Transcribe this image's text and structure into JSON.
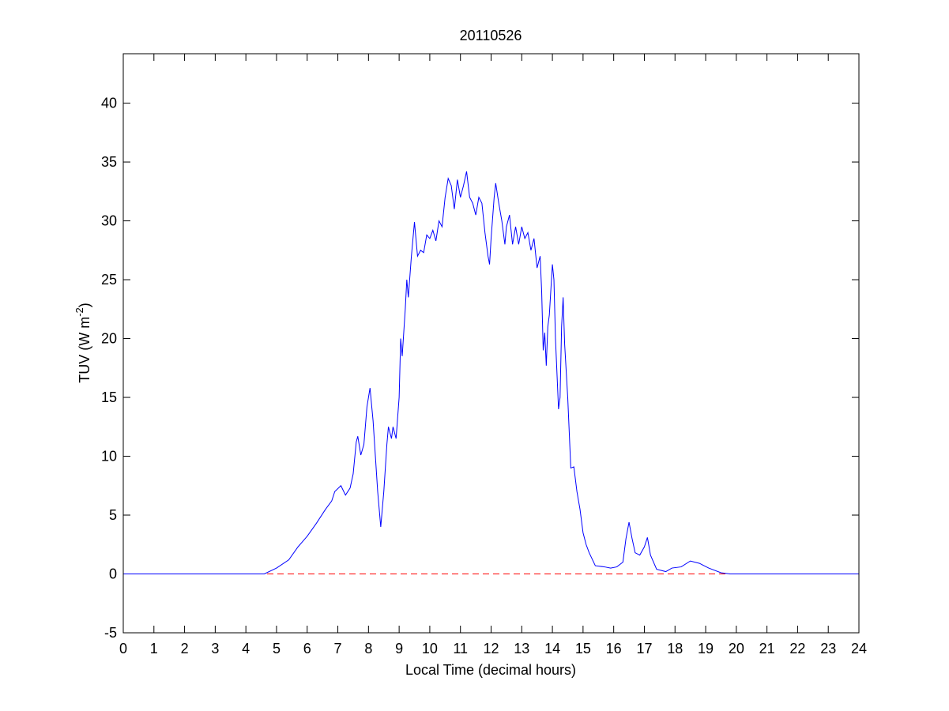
{
  "chart_data": {
    "type": "line",
    "title": "20110526",
    "xlabel": "Local Time (decimal hours)",
    "ylabel_parts": [
      "TUV (W m",
      "-2",
      ")"
    ],
    "xlim": [
      0,
      24
    ],
    "ylim": [
      -5,
      44.2
    ],
    "xticks": [
      0,
      1,
      2,
      3,
      4,
      5,
      6,
      7,
      8,
      9,
      10,
      11,
      12,
      13,
      14,
      15,
      16,
      17,
      18,
      19,
      20,
      21,
      22,
      23,
      24
    ],
    "yticks": [
      -5,
      0,
      5,
      10,
      15,
      20,
      25,
      30,
      35,
      40
    ],
    "grid": false,
    "reference_line": {
      "y": 0,
      "color": "#ff0000",
      "style": "dashed"
    },
    "x": [
      0,
      4.6,
      5.0,
      5.4,
      5.7,
      6.0,
      6.3,
      6.6,
      6.8,
      6.9,
      7.1,
      7.25,
      7.4,
      7.5,
      7.6,
      7.65,
      7.75,
      7.85,
      7.95,
      8.05,
      8.15,
      8.3,
      8.4,
      8.5,
      8.6,
      8.65,
      8.75,
      8.8,
      8.9,
      9.0,
      9.05,
      9.1,
      9.2,
      9.25,
      9.3,
      9.4,
      9.5,
      9.6,
      9.7,
      9.8,
      9.9,
      10.0,
      10.1,
      10.2,
      10.3,
      10.4,
      10.5,
      10.6,
      10.7,
      10.8,
      10.9,
      11.0,
      11.1,
      11.2,
      11.3,
      11.4,
      11.5,
      11.6,
      11.7,
      11.8,
      11.9,
      11.95,
      12.0,
      12.1,
      12.15,
      12.25,
      12.35,
      12.45,
      12.5,
      12.6,
      12.7,
      12.8,
      12.9,
      13.0,
      13.1,
      13.2,
      13.3,
      13.4,
      13.5,
      13.6,
      13.65,
      13.7,
      13.75,
      13.8,
      13.85,
      13.9,
      14.0,
      14.05,
      14.1,
      14.2,
      14.25,
      14.3,
      14.35,
      14.4,
      14.5,
      14.6,
      14.7,
      14.8,
      14.9,
      15.0,
      15.1,
      15.2,
      15.4,
      15.7,
      15.9,
      16.1,
      16.3,
      16.4,
      16.5,
      16.6,
      16.7,
      16.85,
      17.0,
      17.1,
      17.2,
      17.4,
      17.7,
      17.9,
      18.2,
      18.5,
      18.8,
      19.1,
      19.5,
      19.8,
      24
    ],
    "series": [
      {
        "color": "#0000ff",
        "values": [
          0,
          0,
          0.5,
          1.2,
          2.3,
          3.2,
          4.3,
          5.5,
          6.2,
          7.0,
          7.5,
          6.7,
          7.3,
          8.5,
          11.2,
          11.7,
          10.1,
          11.0,
          14.2,
          15.8,
          13.0,
          7.0,
          4.0,
          7.0,
          11.0,
          12.5,
          11.5,
          12.5,
          11.5,
          15.0,
          20.0,
          18.5,
          22.5,
          25.0,
          23.5,
          27.0,
          29.9,
          27.0,
          27.5,
          27.3,
          28.8,
          28.5,
          29.2,
          28.3,
          30.0,
          29.5,
          32.0,
          33.6,
          33.0,
          31.0,
          33.5,
          32.0,
          33.0,
          34.2,
          32.0,
          31.5,
          30.5,
          32.0,
          31.5,
          29.0,
          27.0,
          26.3,
          28.5,
          32.0,
          33.2,
          31.5,
          30.0,
          28.0,
          29.5,
          30.5,
          28.0,
          29.5,
          28.0,
          29.5,
          28.5,
          29.0,
          27.5,
          28.5,
          26.0,
          27.0,
          24.0,
          19.0,
          20.5,
          17.7,
          21.0,
          22.0,
          26.3,
          25.0,
          20.0,
          14.0,
          15.0,
          21.0,
          23.5,
          19.5,
          15.0,
          9.0,
          9.1,
          7.0,
          5.5,
          3.5,
          2.5,
          1.8,
          0.7,
          0.6,
          0.5,
          0.6,
          1.0,
          3.0,
          4.4,
          3.0,
          1.8,
          1.6,
          2.3,
          3.1,
          1.6,
          0.4,
          0.2,
          0.5,
          0.6,
          1.1,
          0.9,
          0.5,
          0.1,
          0,
          0
        ]
      }
    ]
  }
}
